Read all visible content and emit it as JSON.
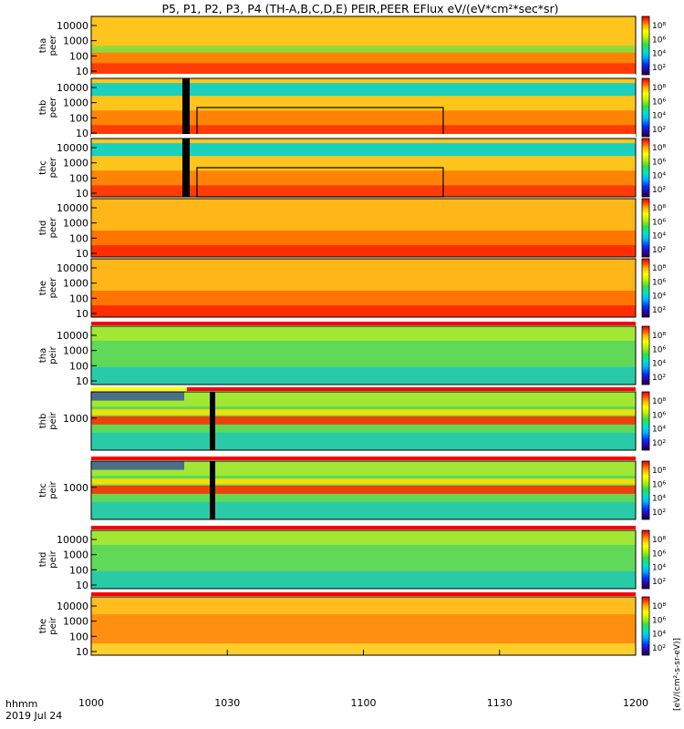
{
  "chart_data": {
    "type": "heatmap",
    "title": "P5, P1, P2, P3, P4 (TH-A,B,C,D,E) PEIR,PEER EFlux eV/(eV*cm²*sec*sr)",
    "colorbar_label": "[eV/(cm²-s-sr-eV)]",
    "x_ticks": [
      "1000",
      "1030",
      "1100",
      "1130",
      "1200"
    ],
    "x_range_minutes": [
      600,
      720
    ],
    "time_axis_label": "hhmm",
    "date_label": "2019 Jul 24",
    "panels": [
      {
        "probe": "tha",
        "instrument": "peer",
        "y_ticks": [
          "10000",
          "1000",
          "100",
          "10"
        ],
        "cb_ticks": [
          "10⁸",
          "10⁶",
          "10⁴",
          "10²"
        ],
        "bars": "none",
        "description_profile": "electron-quiet"
      },
      {
        "probe": "thb",
        "instrument": "peer",
        "y_ticks": [
          "10000",
          "1000",
          "100",
          "10"
        ],
        "cb_ticks": [
          "10⁸",
          "10⁶",
          "10⁴",
          "10²"
        ],
        "bars": "white",
        "description_profile": "electron-b"
      },
      {
        "probe": "thc",
        "instrument": "peer",
        "y_ticks": [
          "10000",
          "1000",
          "100",
          "10"
        ],
        "cb_ticks": [
          "10⁸",
          "10⁶",
          "10⁴",
          "10²"
        ],
        "bars": "white",
        "description_profile": "electron-c"
      },
      {
        "probe": "thd",
        "instrument": "peer",
        "y_ticks": [
          "10000",
          "1000",
          "100",
          "10"
        ],
        "cb_ticks": [
          "10⁸",
          "10⁶",
          "10⁴",
          "10²"
        ],
        "bars": "none",
        "description_profile": "electron-hot"
      },
      {
        "probe": "the",
        "instrument": "peer",
        "y_ticks": [
          "10000",
          "1000",
          "100",
          "10"
        ],
        "cb_ticks": [
          "10⁸",
          "10⁶",
          "10⁴",
          "10²"
        ],
        "bars": "bottom-red",
        "description_profile": "electron-hot"
      },
      {
        "probe": "tha",
        "instrument": "peir",
        "y_ticks": [
          "10000",
          "1000",
          "100",
          "10"
        ],
        "cb_ticks": [
          "10⁸",
          "10⁶",
          "10⁴",
          "10²"
        ],
        "bars": "red",
        "description_profile": "ion-quiet"
      },
      {
        "probe": "thb",
        "instrument": "peir",
        "y_ticks": [
          "1000"
        ],
        "cb_ticks": [
          "10⁸",
          "10⁶",
          "10⁴",
          "10²"
        ],
        "bars": "yellow-red",
        "description_profile": "ion-b"
      },
      {
        "probe": "thc",
        "instrument": "peir",
        "y_ticks": [
          "1000"
        ],
        "cb_ticks": [
          "10⁸",
          "10⁶",
          "10⁴",
          "10²"
        ],
        "bars": "red-bottom",
        "description_profile": "ion-c"
      },
      {
        "probe": "thd",
        "instrument": "peir",
        "y_ticks": [
          "10000",
          "1000",
          "100",
          "10"
        ],
        "cb_ticks": [
          "10⁸",
          "10⁶",
          "10⁴",
          "10²"
        ],
        "bars": "red",
        "description_profile": "ion-quiet"
      },
      {
        "probe": "the",
        "instrument": "peir",
        "y_ticks": [
          "10000",
          "1000",
          "100",
          "10"
        ],
        "cb_ticks": [
          "10⁸",
          "10⁶",
          "10⁴",
          "10²"
        ],
        "bars": "red",
        "description_profile": "ion-warm"
      }
    ]
  }
}
